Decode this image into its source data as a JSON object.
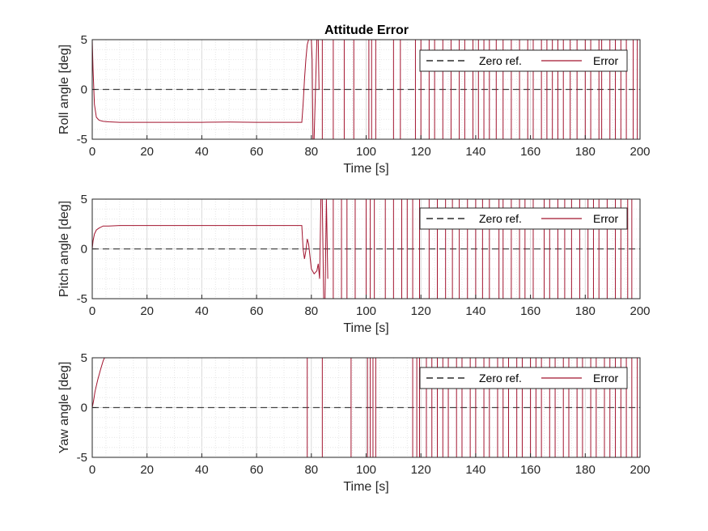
{
  "chart_data": [
    {
      "type": "line",
      "title": "Attitude Error",
      "xlabel": "Time [s]",
      "ylabel": "Roll angle [deg]",
      "xlim": [
        0,
        200
      ],
      "ylim": [
        -5,
        5
      ],
      "xticks": [
        "0",
        "20",
        "40",
        "60",
        "80",
        "100",
        "120",
        "140",
        "160",
        "180",
        "200"
      ],
      "yticks": [
        "-5",
        "0",
        "5"
      ],
      "grid": true,
      "legend_position": "top-right",
      "series": [
        {
          "name": "Zero ref.",
          "color": "#000000",
          "style": "dashed",
          "x": [
            0,
            200
          ],
          "y": [
            0,
            0
          ]
        },
        {
          "name": "Error",
          "color": "#a2142f",
          "style": "solid",
          "x": [
            0,
            0.3,
            0.8,
            1.5,
            2.5,
            4,
            6,
            10,
            20,
            30,
            40,
            50,
            60,
            70,
            76.5,
            77,
            77.5,
            78,
            78.5,
            79,
            80,
            80.3,
            80.6,
            81,
            81.5,
            82,
            82.5,
            82.8
          ],
          "y": [
            5,
            2,
            -1.5,
            -2.8,
            -3.1,
            -3.2,
            -3.25,
            -3.3,
            -3.3,
            -3.3,
            -3.3,
            -3.28,
            -3.3,
            -3.3,
            -3.3,
            -1.5,
            1,
            3,
            4.5,
            5,
            5,
            3,
            -5,
            -5,
            0,
            5,
            5,
            0
          ]
        },
        {
          "name": "",
          "color": "#a2142f",
          "style": "spikes",
          "x": [
            84,
            88,
            92,
            95.5,
            101,
            102,
            103.5,
            110,
            112.5,
            118,
            120,
            123,
            125,
            128,
            131,
            134,
            136,
            139,
            141,
            143,
            145,
            147.5,
            150,
            153,
            156,
            159,
            161,
            164,
            166,
            168,
            170,
            172,
            174.5,
            177,
            180,
            182,
            185,
            186,
            189,
            191,
            193,
            195,
            197.5,
            199
          ],
          "y": [
            -5,
            -5,
            -5,
            -5,
            -5,
            -5,
            -5,
            -5,
            -5,
            -5,
            -5,
            -5,
            -5,
            -5,
            -5,
            -5,
            -5,
            -5,
            -5,
            -5,
            -5,
            -5,
            -5,
            -5,
            -5,
            -5,
            -5,
            -5,
            -5,
            -5,
            -5,
            -5,
            -5,
            -5,
            -5,
            -5,
            -5,
            -5,
            -5,
            -5,
            -5,
            -5,
            -5,
            -5
          ]
        }
      ]
    },
    {
      "type": "line",
      "title": "",
      "xlabel": "Time [s]",
      "ylabel": "Pitch angle [deg]",
      "xlim": [
        0,
        200
      ],
      "ylim": [
        -5,
        5
      ],
      "xticks": [
        "0",
        "20",
        "40",
        "60",
        "80",
        "100",
        "120",
        "140",
        "160",
        "180",
        "200"
      ],
      "yticks": [
        "-5",
        "0",
        "5"
      ],
      "grid": true,
      "legend_position": "top-right",
      "series": [
        {
          "name": "Zero ref.",
          "color": "#000000",
          "style": "dashed",
          "x": [
            0,
            200
          ],
          "y": [
            0,
            0
          ]
        },
        {
          "name": "Error",
          "color": "#a2142f",
          "style": "solid",
          "x": [
            0,
            0.3,
            0.8,
            1.5,
            2.5,
            4,
            6,
            10,
            20,
            30,
            40,
            50,
            60,
            70,
            76.5,
            77,
            77.5,
            78,
            78.5,
            79,
            80,
            81,
            82,
            82.5,
            83,
            83.5,
            84,
            84.5,
            85,
            85.5,
            86
          ],
          "y": [
            0,
            0.8,
            1.5,
            1.9,
            2.1,
            2.3,
            2.3,
            2.35,
            2.35,
            2.35,
            2.35,
            2.35,
            2.35,
            2.35,
            2.35,
            0,
            -1.0,
            -0.2,
            1.0,
            0.5,
            -2.0,
            -2.5,
            -2.2,
            -1.5,
            -3.0,
            5,
            5,
            -5,
            -5,
            5,
            -3.0
          ]
        },
        {
          "name": "",
          "color": "#a2142f",
          "style": "spikes",
          "x": [
            88,
            91,
            93,
            96,
            100,
            101.5,
            103,
            107,
            110,
            113,
            115,
            117,
            119.5,
            123,
            126,
            129,
            131.5,
            134,
            137,
            140,
            142.5,
            145,
            148.5,
            150,
            153,
            156,
            158,
            161,
            165,
            167,
            170,
            172.5,
            175,
            178,
            181,
            183,
            185,
            188,
            191,
            193,
            195.5,
            197
          ],
          "y": [
            -5,
            -5,
            -5,
            -5,
            -5,
            -5,
            -5,
            -5,
            -5,
            -5,
            -5,
            -5,
            -5,
            -5,
            -5,
            -5,
            -5,
            -5,
            -5,
            -5,
            -5,
            -5,
            -5,
            -5,
            -5,
            -5,
            -5,
            -5,
            -5,
            -5,
            -5,
            -5,
            -5,
            -5,
            -5,
            -5,
            -5,
            -5,
            -5,
            -5,
            -5,
            -5
          ]
        }
      ]
    },
    {
      "type": "line",
      "title": "",
      "xlabel": "Time [s]",
      "ylabel": "Yaw angle [deg]",
      "xlim": [
        0,
        200
      ],
      "ylim": [
        -5,
        5
      ],
      "xticks": [
        "0",
        "20",
        "40",
        "60",
        "80",
        "100",
        "120",
        "140",
        "160",
        "180",
        "200"
      ],
      "yticks": [
        "-5",
        "0",
        "5"
      ],
      "grid": true,
      "legend_position": "top-right",
      "series": [
        {
          "name": "Zero ref.",
          "color": "#000000",
          "style": "dashed",
          "x": [
            0,
            200
          ],
          "y": [
            0,
            0
          ]
        },
        {
          "name": "Error",
          "color": "#a2142f",
          "style": "solid",
          "x": [
            0,
            0.5,
            1,
            2,
            3,
            4,
            4.5
          ],
          "y": [
            0,
            0.7,
            1.6,
            2.8,
            3.8,
            4.7,
            5
          ]
        },
        {
          "name": "",
          "color": "#a2142f",
          "style": "spikes",
          "x": [
            78.5,
            84,
            94.5,
            100.5,
            101.5,
            102.5,
            103.5,
            117,
            118.5,
            119.5,
            122,
            124,
            126,
            128,
            130,
            133,
            135,
            138,
            140,
            143,
            145,
            148,
            150,
            152,
            155,
            157,
            160,
            162,
            164,
            167,
            169,
            172,
            174,
            177,
            179,
            182,
            184,
            187,
            189,
            191,
            193,
            195,
            197,
            199
          ],
          "y": [
            -5,
            -5,
            -5,
            -5,
            -5,
            -5,
            -5,
            -5,
            -5,
            -5,
            -5,
            -5,
            -5,
            -5,
            -5,
            -5,
            -5,
            -5,
            -5,
            -5,
            -5,
            -5,
            -5,
            -5,
            -5,
            -5,
            -5,
            -5,
            -5,
            -5,
            -5,
            -5,
            -5,
            -5,
            -5,
            -5,
            -5,
            -5,
            -5,
            -5,
            -5,
            -5,
            -5,
            -5
          ]
        }
      ]
    }
  ]
}
